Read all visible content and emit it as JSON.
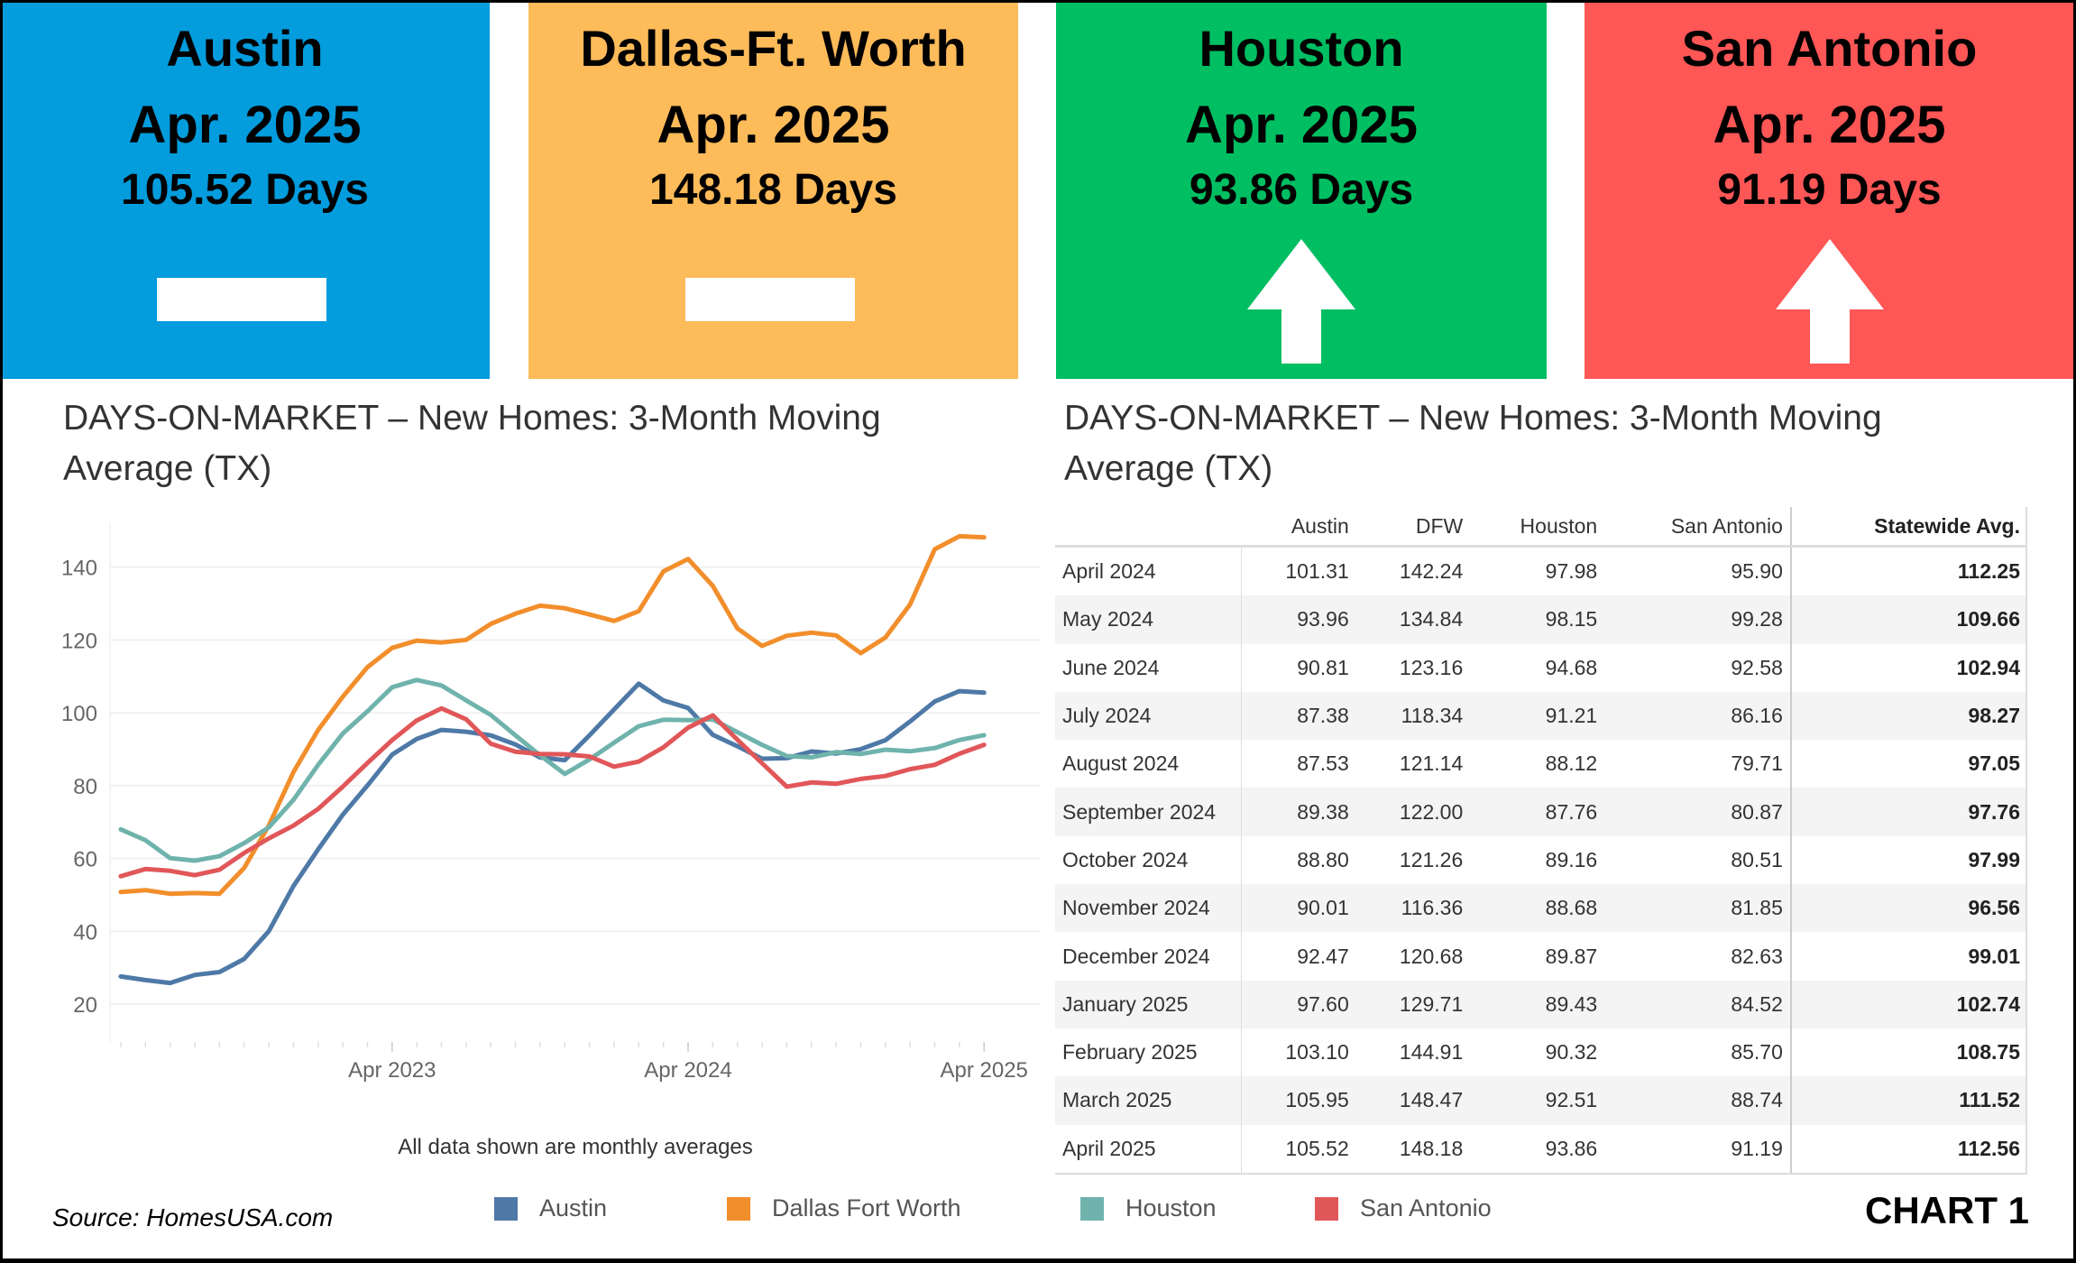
{
  "tiles": [
    {
      "city": "Austin",
      "period": "Apr. 2025",
      "days": "105.52 Days",
      "color": "#039CDD",
      "trend": "flat"
    },
    {
      "city": "Dallas-Ft. Worth",
      "period": "Apr. 2025",
      "days": "148.18 Days",
      "color": "#FDBB5A",
      "trend": "flat"
    },
    {
      "city": "Houston",
      "period": "Apr. 2025",
      "days": "93.86 Days",
      "color": "#00BE62",
      "trend": "up"
    },
    {
      "city": "San Antonio",
      "period": "Apr. 2025",
      "days": "91.19 Days",
      "color": "#FF5656",
      "trend": "up"
    }
  ],
  "left_title": "DAYS-ON-MARKET – New Homes: 3-Month Moving Average (TX)",
  "right_title": "DAYS-ON-MARKET – New Homes:  3-Month Moving Average (TX)",
  "note": "All data shown are monthly averages",
  "source": "Source: HomesUSA.com",
  "chart_label": "CHART 1",
  "chart_data": {
    "type": "line",
    "x": [
      "May 2022",
      "Jun 2022",
      "Jul 2022",
      "Aug 2022",
      "Sep 2022",
      "Oct 2022",
      "Nov 2022",
      "Dec 2022",
      "Jan 2023",
      "Feb 2023",
      "Mar 2023",
      "Apr 2023",
      "May 2023",
      "Jun 2023",
      "Jul 2023",
      "Aug 2023",
      "Sep 2023",
      "Oct 2023",
      "Nov 2023",
      "Dec 2023",
      "Jan 2024",
      "Feb 2024",
      "Mar 2024",
      "Apr 2024",
      "May 2024",
      "Jun 2024",
      "Jul 2024",
      "Aug 2024",
      "Sep 2024",
      "Oct 2024",
      "Nov 2024",
      "Dec 2024",
      "Jan 2025",
      "Feb 2025",
      "Mar 2025",
      "Apr 2025"
    ],
    "x_ticks": [
      "Apr 2023",
      "Apr 2024",
      "Apr 2025"
    ],
    "y_ticks": [
      20,
      40,
      60,
      80,
      100,
      120,
      140
    ],
    "ylim": [
      0,
      152
    ],
    "grid": true,
    "legend": "bottom",
    "series": [
      {
        "name": "Austin",
        "color": "#4E79A7",
        "values": [
          27.6,
          26.6,
          25.8,
          28,
          28.8,
          32.4,
          40,
          52.4,
          62.5,
          72,
          80,
          88.5,
          92.8,
          95.3,
          94.8,
          93.8,
          91.3,
          87.7,
          87,
          93.8,
          100.9,
          108,
          103.4,
          101.31,
          93.96,
          90.81,
          87.38,
          87.53,
          89.38,
          88.8,
          90.01,
          92.47,
          97.6,
          103.1,
          105.95,
          105.52
        ]
      },
      {
        "name": "Dallas Fort Worth",
        "color": "#F28E2B",
        "values": [
          50.8,
          51.3,
          50.3,
          50.5,
          50.3,
          57.4,
          69,
          83.7,
          95.3,
          104.4,
          112.5,
          117.8,
          119.8,
          119.3,
          120,
          124.4,
          127.2,
          129.4,
          128.7,
          127,
          125.2,
          127.9,
          138.8,
          142.24,
          134.84,
          123.16,
          118.34,
          121.14,
          122.0,
          121.26,
          116.36,
          120.68,
          129.71,
          144.91,
          148.47,
          148.18
        ]
      },
      {
        "name": "Houston",
        "color": "#6FB3AC",
        "values": [
          68,
          65,
          60.1,
          59.4,
          60.6,
          64.2,
          68.5,
          76.1,
          85.7,
          94.3,
          100.4,
          107,
          109,
          107.5,
          103.4,
          99.4,
          93.8,
          88.3,
          83.2,
          87.2,
          91.8,
          96.3,
          98.1,
          97.98,
          98.15,
          94.68,
          91.21,
          88.12,
          87.76,
          89.16,
          88.68,
          89.87,
          89.43,
          90.32,
          92.51,
          93.86
        ]
      },
      {
        "name": "San Antonio",
        "color": "#E15759",
        "values": [
          55.1,
          57.1,
          56.6,
          55.4,
          56.9,
          61.5,
          65.5,
          69,
          73.6,
          79.7,
          86.2,
          92.5,
          97.9,
          101.2,
          98.2,
          91.5,
          89.3,
          88.7,
          88.6,
          88,
          85.2,
          86.6,
          90.5,
          95.9,
          99.28,
          92.58,
          86.16,
          79.71,
          80.87,
          80.51,
          81.85,
          82.63,
          84.52,
          85.7,
          88.74,
          91.19
        ]
      }
    ]
  },
  "table": {
    "headers": [
      "",
      "Austin",
      "DFW",
      "Houston",
      "San Antonio",
      "Statewide Avg."
    ],
    "rows": [
      [
        "April 2024",
        "101.31",
        "142.24",
        "97.98",
        "95.90",
        "112.25"
      ],
      [
        "May 2024",
        "93.96",
        "134.84",
        "98.15",
        "99.28",
        "109.66"
      ],
      [
        "June 2024",
        "90.81",
        "123.16",
        "94.68",
        "92.58",
        "102.94"
      ],
      [
        "July 2024",
        "87.38",
        "118.34",
        "91.21",
        "86.16",
        "98.27"
      ],
      [
        "August 2024",
        "87.53",
        "121.14",
        "88.12",
        "79.71",
        "97.05"
      ],
      [
        "September 2024",
        "89.38",
        "122.00",
        "87.76",
        "80.87",
        "97.76"
      ],
      [
        "October 2024",
        "88.80",
        "121.26",
        "89.16",
        "80.51",
        "97.99"
      ],
      [
        "November 2024",
        "90.01",
        "116.36",
        "88.68",
        "81.85",
        "96.56"
      ],
      [
        "December 2024",
        "92.47",
        "120.68",
        "89.87",
        "82.63",
        "99.01"
      ],
      [
        "January 2025",
        "97.60",
        "129.71",
        "89.43",
        "84.52",
        "102.74"
      ],
      [
        "February 2025",
        "103.10",
        "144.91",
        "90.32",
        "85.70",
        "108.75"
      ],
      [
        "March 2025",
        "105.95",
        "148.47",
        "92.51",
        "88.74",
        "111.52"
      ],
      [
        "April 2025",
        "105.52",
        "148.18",
        "93.86",
        "91.19",
        "112.56"
      ]
    ]
  }
}
